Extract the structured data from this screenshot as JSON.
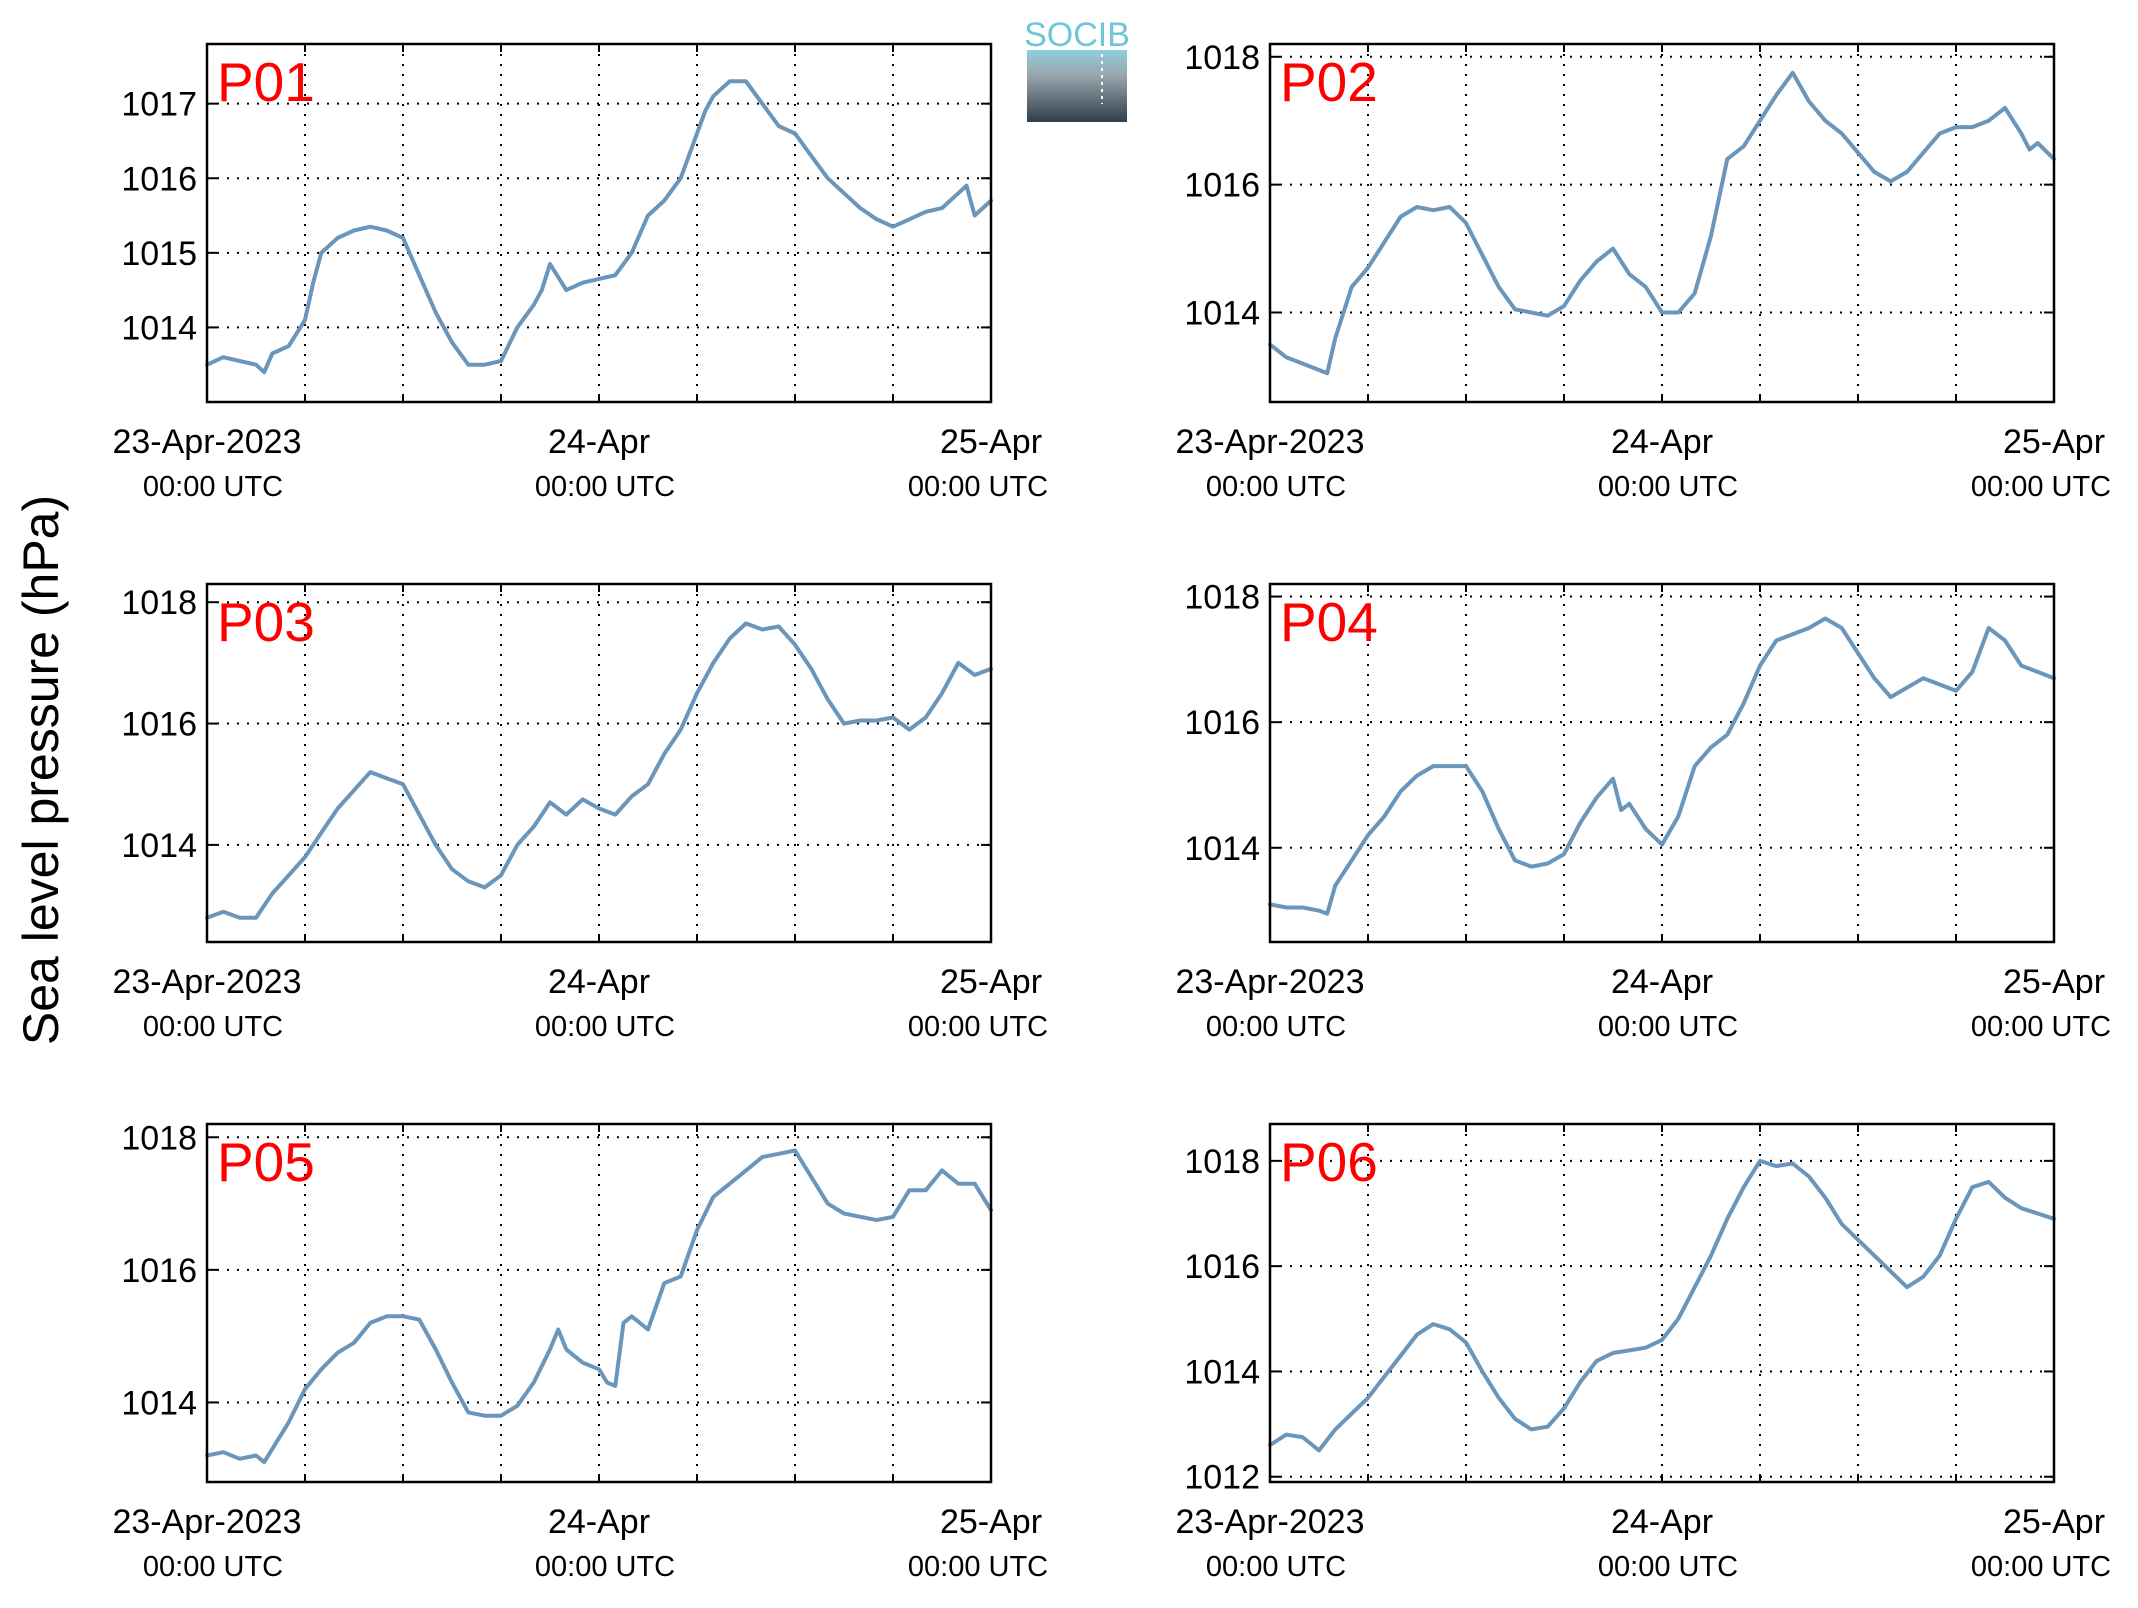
{
  "figure": {
    "ylabel": "Sea level pressure (hPa)",
    "logo_text": "SOCIB",
    "line_color": "#6a96bb",
    "panel_label_color": "#ff0000"
  },
  "chart_data": [
    {
      "type": "line",
      "title": "P01",
      "x_unit": "hours since 23-Apr-2023 00:00 UTC",
      "ylim": [
        1013.0,
        1017.8
      ],
      "yticks": [
        1014,
        1015,
        1016,
        1017
      ],
      "grid": true,
      "xticks": [
        {
          "hour": 0,
          "date": "23-Apr-2023",
          "time": "00:00 UTC"
        },
        {
          "hour": 24,
          "date": "24-Apr",
          "time": "00:00 UTC"
        },
        {
          "hour": 48,
          "date": "25-Apr",
          "time": "00:00 UTC"
        }
      ],
      "series": [
        {
          "x": [
            0,
            1,
            2,
            3,
            3.5,
            4,
            5,
            6,
            6.5,
            7,
            8,
            9,
            10,
            11,
            12,
            13,
            14,
            15,
            16,
            17,
            18,
            19,
            20,
            20.5,
            21,
            22,
            23,
            24,
            25,
            26,
            27,
            28,
            29,
            30,
            30.5,
            31,
            32,
            33,
            34,
            35,
            36,
            37,
            38,
            39,
            40,
            41,
            42,
            43,
            44,
            45,
            46,
            46.5,
            47,
            48
          ],
          "y": [
            1013.5,
            1013.6,
            1013.55,
            1013.5,
            1013.4,
            1013.65,
            1013.75,
            1014.1,
            1014.6,
            1015.0,
            1015.2,
            1015.3,
            1015.35,
            1015.3,
            1015.2,
            1014.7,
            1014.2,
            1013.8,
            1013.5,
            1013.5,
            1013.55,
            1014.0,
            1014.3,
            1014.5,
            1014.85,
            1014.5,
            1014.6,
            1014.65,
            1014.7,
            1015.0,
            1015.5,
            1015.7,
            1016.0,
            1016.6,
            1016.9,
            1017.1,
            1017.3,
            1017.3,
            1017.0,
            1016.7,
            1016.6,
            1016.3,
            1016.0,
            1015.8,
            1015.6,
            1015.45,
            1015.35,
            1015.45,
            1015.55,
            1015.6,
            1015.8,
            1015.9,
            1015.5,
            1015.7
          ]
        }
      ]
    },
    {
      "type": "line",
      "title": "P02",
      "x_unit": "hours since 23-Apr-2023 00:00 UTC",
      "ylim": [
        1012.6,
        1018.2
      ],
      "yticks": [
        1014,
        1016,
        1018
      ],
      "grid": true,
      "xticks": [
        {
          "hour": 0,
          "date": "23-Apr-2023",
          "time": "00:00 UTC"
        },
        {
          "hour": 24,
          "date": "24-Apr",
          "time": "00:00 UTC"
        },
        {
          "hour": 48,
          "date": "25-Apr",
          "time": "00:00 UTC"
        }
      ],
      "series": [
        {
          "x": [
            0,
            1,
            2,
            3,
            3.5,
            4,
            5,
            6,
            7,
            8,
            9,
            10,
            11,
            12,
            13,
            14,
            15,
            16,
            17,
            18,
            19,
            20,
            21,
            22,
            23,
            24,
            25,
            26,
            27,
            28,
            29,
            30,
            31,
            32,
            33,
            34,
            35,
            36,
            37,
            38,
            39,
            40,
            41,
            42,
            43,
            44,
            45,
            46,
            46.5,
            47,
            48
          ],
          "y": [
            1013.5,
            1013.3,
            1013.2,
            1013.1,
            1013.05,
            1013.6,
            1014.4,
            1014.7,
            1015.1,
            1015.5,
            1015.65,
            1015.6,
            1015.65,
            1015.4,
            1014.9,
            1014.4,
            1014.05,
            1014.0,
            1013.95,
            1014.1,
            1014.5,
            1014.8,
            1015.0,
            1014.6,
            1014.4,
            1014.0,
            1014.0,
            1014.3,
            1015.2,
            1016.4,
            1016.6,
            1017.0,
            1017.4,
            1017.75,
            1017.3,
            1017.0,
            1016.8,
            1016.5,
            1016.2,
            1016.05,
            1016.2,
            1016.5,
            1016.8,
            1016.9,
            1016.9,
            1017.0,
            1017.2,
            1016.8,
            1016.55,
            1016.65,
            1016.4
          ]
        }
      ]
    },
    {
      "type": "line",
      "title": "P03",
      "x_unit": "hours since 23-Apr-2023 00:00 UTC",
      "ylim": [
        1012.4,
        1018.3
      ],
      "yticks": [
        1014,
        1016,
        1018
      ],
      "grid": true,
      "xticks": [
        {
          "hour": 0,
          "date": "23-Apr-2023",
          "time": "00:00 UTC"
        },
        {
          "hour": 24,
          "date": "24-Apr",
          "time": "00:00 UTC"
        },
        {
          "hour": 48,
          "date": "25-Apr",
          "time": "00:00 UTC"
        }
      ],
      "series": [
        {
          "x": [
            0,
            1,
            2,
            3,
            4,
            5,
            6,
            7,
            8,
            9,
            10,
            11,
            12,
            13,
            14,
            15,
            16,
            17,
            18,
            19,
            20,
            21,
            22,
            23,
            24,
            25,
            26,
            27,
            28,
            29,
            30,
            31,
            32,
            33,
            34,
            35,
            36,
            37,
            38,
            39,
            40,
            41,
            42,
            43,
            44,
            45,
            46,
            47,
            48
          ],
          "y": [
            1012.8,
            1012.9,
            1012.8,
            1012.8,
            1013.2,
            1013.5,
            1013.8,
            1014.2,
            1014.6,
            1014.9,
            1015.2,
            1015.1,
            1015.0,
            1014.5,
            1014.0,
            1013.6,
            1013.4,
            1013.3,
            1013.5,
            1014.0,
            1014.3,
            1014.7,
            1014.5,
            1014.75,
            1014.6,
            1014.5,
            1014.8,
            1015.0,
            1015.5,
            1015.9,
            1016.5,
            1017.0,
            1017.4,
            1017.65,
            1017.55,
            1017.6,
            1017.3,
            1016.9,
            1016.4,
            1016.0,
            1016.05,
            1016.05,
            1016.1,
            1015.9,
            1016.1,
            1016.5,
            1017.0,
            1016.8,
            1016.9
          ]
        }
      ]
    },
    {
      "type": "line",
      "title": "P04",
      "x_unit": "hours since 23-Apr-2023 00:00 UTC",
      "ylim": [
        1012.5,
        1018.2
      ],
      "yticks": [
        1014,
        1016,
        1018
      ],
      "grid": true,
      "xticks": [
        {
          "hour": 0,
          "date": "23-Apr-2023",
          "time": "00:00 UTC"
        },
        {
          "hour": 24,
          "date": "24-Apr",
          "time": "00:00 UTC"
        },
        {
          "hour": 48,
          "date": "25-Apr",
          "time": "00:00 UTC"
        }
      ],
      "series": [
        {
          "x": [
            0,
            1,
            2,
            3,
            3.5,
            4,
            5,
            6,
            7,
            8,
            9,
            10,
            11,
            12,
            13,
            14,
            15,
            16,
            17,
            18,
            19,
            20,
            21,
            21.5,
            22,
            23,
            24,
            25,
            26,
            27,
            28,
            29,
            30,
            31,
            32,
            33,
            34,
            35,
            36,
            37,
            38,
            39,
            40,
            41,
            42,
            43,
            44,
            45,
            46,
            47,
            48
          ],
          "y": [
            1013.1,
            1013.05,
            1013.05,
            1013.0,
            1012.95,
            1013.4,
            1013.8,
            1014.2,
            1014.5,
            1014.9,
            1015.15,
            1015.3,
            1015.3,
            1015.3,
            1014.9,
            1014.3,
            1013.8,
            1013.7,
            1013.75,
            1013.9,
            1014.4,
            1014.8,
            1015.1,
            1014.6,
            1014.7,
            1014.3,
            1014.05,
            1014.5,
            1015.3,
            1015.6,
            1015.8,
            1016.3,
            1016.9,
            1017.3,
            1017.4,
            1017.5,
            1017.65,
            1017.5,
            1017.1,
            1016.7,
            1016.4,
            1016.55,
            1016.7,
            1016.6,
            1016.5,
            1016.8,
            1017.5,
            1017.3,
            1016.9,
            1016.8,
            1016.7
          ]
        }
      ]
    },
    {
      "type": "line",
      "title": "P05",
      "x_unit": "hours since 23-Apr-2023 00:00 UTC",
      "ylim": [
        1012.8,
        1018.2
      ],
      "yticks": [
        1014,
        1016,
        1018
      ],
      "grid": true,
      "xticks": [
        {
          "hour": 0,
          "date": "23-Apr-2023",
          "time": "00:00 UTC"
        },
        {
          "hour": 24,
          "date": "24-Apr",
          "time": "00:00 UTC"
        },
        {
          "hour": 48,
          "date": "25-Apr",
          "time": "00:00 UTC"
        }
      ],
      "series": [
        {
          "x": [
            0,
            1,
            2,
            3,
            3.5,
            4,
            5,
            6,
            7,
            8,
            9,
            10,
            11,
            12,
            13,
            14,
            15,
            16,
            17,
            18,
            19,
            20,
            21,
            21.5,
            22,
            23,
            24,
            24.5,
            25,
            25.5,
            26,
            27,
            28,
            29,
            30,
            31,
            32,
            33,
            34,
            35,
            36,
            37,
            38,
            39,
            40,
            41,
            42,
            43,
            44,
            45,
            46,
            47,
            48
          ],
          "y": [
            1013.2,
            1013.25,
            1013.15,
            1013.2,
            1013.1,
            1013.3,
            1013.7,
            1014.2,
            1014.5,
            1014.75,
            1014.9,
            1015.2,
            1015.3,
            1015.3,
            1015.25,
            1014.8,
            1014.3,
            1013.85,
            1013.8,
            1013.8,
            1013.95,
            1014.3,
            1014.8,
            1015.1,
            1014.8,
            1014.6,
            1014.5,
            1014.3,
            1014.25,
            1015.2,
            1015.3,
            1015.1,
            1015.8,
            1015.9,
            1016.6,
            1017.1,
            1017.3,
            1017.5,
            1017.7,
            1017.75,
            1017.8,
            1017.4,
            1017.0,
            1016.85,
            1016.8,
            1016.75,
            1016.8,
            1017.2,
            1017.2,
            1017.5,
            1017.3,
            1017.3,
            1016.9
          ]
        }
      ]
    },
    {
      "type": "line",
      "title": "P06",
      "x_unit": "hours since 23-Apr-2023 00:00 UTC",
      "ylim": [
        1011.9,
        1018.7
      ],
      "yticks": [
        1012,
        1014,
        1016,
        1018
      ],
      "grid": true,
      "xticks": [
        {
          "hour": 0,
          "date": "23-Apr-2023",
          "time": "00:00 UTC"
        },
        {
          "hour": 24,
          "date": "24-Apr",
          "time": "00:00 UTC"
        },
        {
          "hour": 48,
          "date": "25-Apr",
          "time": "00:00 UTC"
        }
      ],
      "series": [
        {
          "x": [
            0,
            1,
            2,
            3,
            4,
            5,
            6,
            7,
            8,
            9,
            10,
            11,
            12,
            13,
            14,
            15,
            16,
            17,
            18,
            19,
            20,
            21,
            22,
            23,
            24,
            25,
            26,
            27,
            28,
            29,
            30,
            31,
            32,
            33,
            34,
            35,
            36,
            37,
            38,
            39,
            40,
            41,
            42,
            43,
            44,
            45,
            46,
            47,
            48
          ],
          "y": [
            1012.6,
            1012.8,
            1012.75,
            1012.5,
            1012.9,
            1013.2,
            1013.5,
            1013.9,
            1014.3,
            1014.7,
            1014.9,
            1014.8,
            1014.55,
            1014.0,
            1013.5,
            1013.1,
            1012.9,
            1012.95,
            1013.3,
            1013.8,
            1014.2,
            1014.35,
            1014.4,
            1014.45,
            1014.6,
            1015.0,
            1015.6,
            1016.2,
            1016.9,
            1017.5,
            1018.0,
            1017.9,
            1017.95,
            1017.7,
            1017.3,
            1016.8,
            1016.5,
            1016.2,
            1015.9,
            1015.6,
            1015.8,
            1016.2,
            1016.9,
            1017.5,
            1017.6,
            1017.3,
            1017.1,
            1017.0,
            1016.9
          ]
        }
      ]
    }
  ]
}
